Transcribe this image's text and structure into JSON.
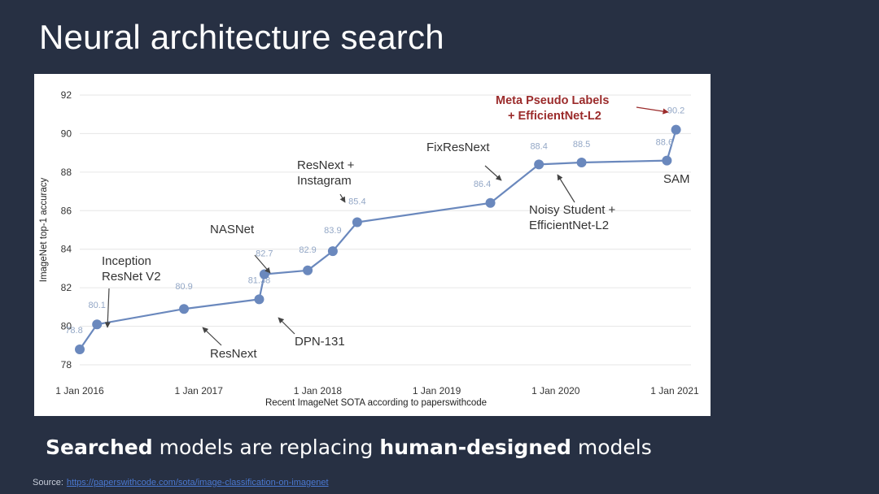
{
  "slide": {
    "title": "Neural architecture search",
    "subtitle_part1": "Searched",
    "subtitle_part2": " models are replacing ",
    "subtitle_part3": "human-designed",
    "subtitle_part4": " models",
    "source_label": "Source:",
    "source_link": "https://paperswithcode.com/sota/image-classification-on-imagenet"
  },
  "chart_data": {
    "type": "line",
    "title": "",
    "xlabel": "Recent ImageNet SOTA according to paperswithcode",
    "ylabel": "ImageNet top-1 accuracy",
    "ylim": [
      78,
      92
    ],
    "yticks": [
      78,
      80,
      82,
      84,
      86,
      88,
      90,
      92
    ],
    "xticks": [
      "1 Jan 2016",
      "1 Jan 2017",
      "1 Jan 2018",
      "1 Jan 2019",
      "1 Jan 2020",
      "1 Jan 2021"
    ],
    "grid": true,
    "line_color": "#6a88bd",
    "highlight_color": "#9b2b2b",
    "points": [
      {
        "date": "2016-01-01",
        "value": 78.8,
        "label": "78.8"
      },
      {
        "date": "2016-02-23",
        "value": 80.1,
        "label": "80.1"
      },
      {
        "date": "2016-11-16",
        "value": 80.9,
        "label": "80.9"
      },
      {
        "date": "2017-07-05",
        "value": 81.4,
        "label": "81.38"
      },
      {
        "date": "2017-07-21",
        "value": 82.7,
        "label": "82.7"
      },
      {
        "date": "2017-12-01",
        "value": 82.9,
        "label": "82.9"
      },
      {
        "date": "2018-02-16",
        "value": 83.9,
        "label": "83.9"
      },
      {
        "date": "2018-05-02",
        "value": 85.4,
        "label": "85.4"
      },
      {
        "date": "2019-06-15",
        "value": 86.4,
        "label": "86.4"
      },
      {
        "date": "2019-11-11",
        "value": 88.4,
        "label": "88.4"
      },
      {
        "date": "2020-03-21",
        "value": 88.5,
        "label": "88.5"
      },
      {
        "date": "2020-12-08",
        "value": 88.6,
        "label": "88.6"
      },
      {
        "date": "2021-01-05",
        "value": 90.2,
        "label": "90.2"
      }
    ],
    "annotations": [
      {
        "id": "inception",
        "lines": [
          "Inception",
          "ResNet V2"
        ],
        "point": 1
      },
      {
        "id": "resnext-a",
        "lines": [
          "ResNext"
        ],
        "point": 2
      },
      {
        "id": "nasnet",
        "lines": [
          "NASNet"
        ],
        "point": 4
      },
      {
        "id": "dpn",
        "lines": [
          "DPN-131"
        ],
        "point": 3
      },
      {
        "id": "resnext-ig",
        "lines": [
          "ResNext +",
          "Instagram"
        ],
        "point": 7
      },
      {
        "id": "fixresnext",
        "lines": [
          "FixResNext"
        ],
        "point": 8
      },
      {
        "id": "noisy",
        "lines": [
          "Noisy Student +",
          "EfficientNet-L2"
        ],
        "point": 9
      },
      {
        "id": "sam",
        "lines": [
          "SAM"
        ],
        "point": 11
      },
      {
        "id": "mpl",
        "lines": [
          "Meta Pseudo Labels",
          "+ EfficientNet-L2"
        ],
        "point": 12,
        "highlight": true
      }
    ]
  }
}
